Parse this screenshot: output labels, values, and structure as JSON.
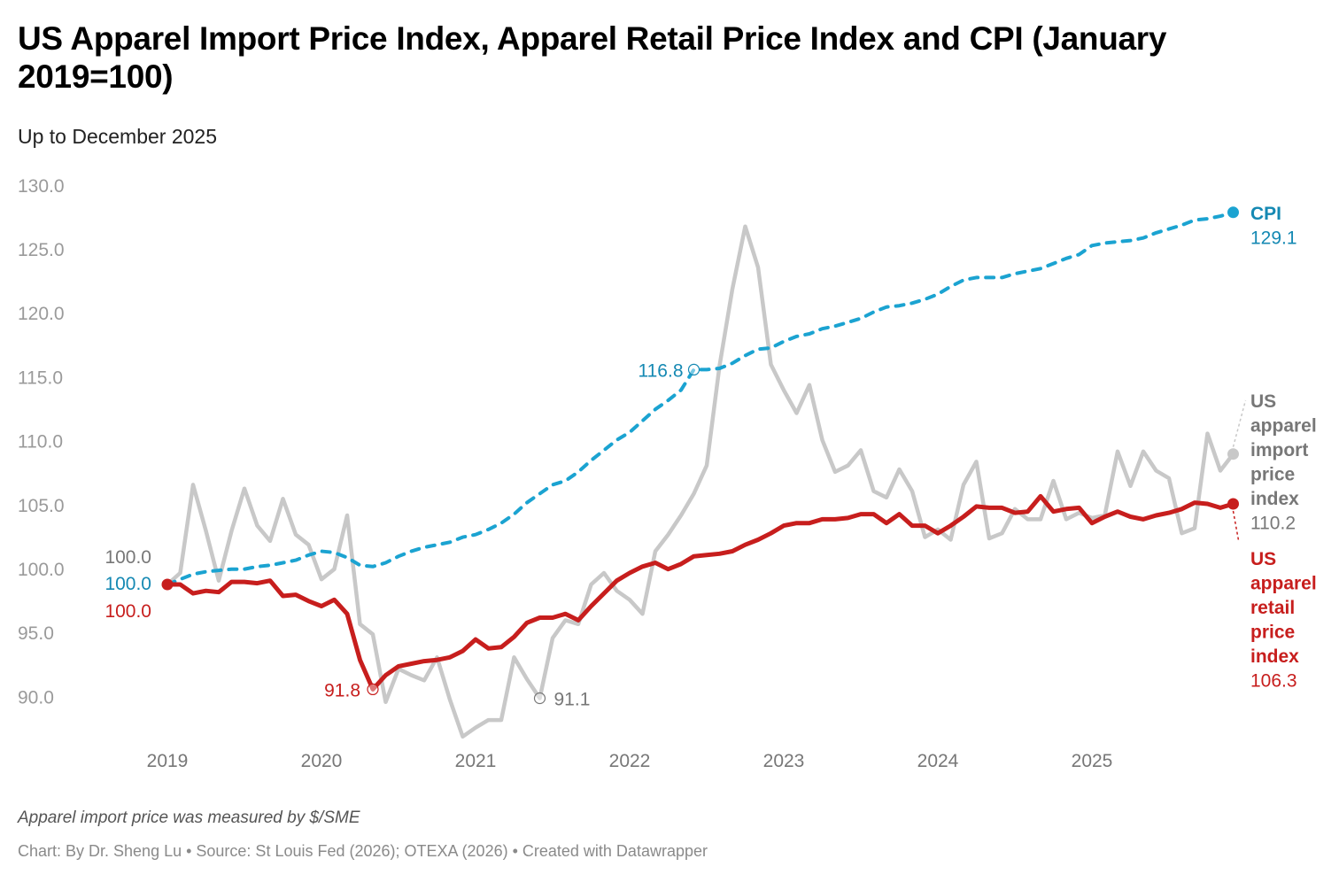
{
  "header": {
    "title": "US Apparel Import Price Index, Apparel Retail Price Index and CPI (January 2019=100)",
    "subtitle": "Up to December 2025"
  },
  "footer": {
    "notes": "Apparel import price was measured by $/SME",
    "byline": "Chart: By Dr. Sheng Lu • Source: St Louis Fed (2026); OTEXA (2026) • Created with Datawrapper"
  },
  "chart_data": {
    "type": "line",
    "title": "US Apparel Import Price Index, Apparel Retail Price Index and CPI (January 2019=100)",
    "subtitle": "Up to December 2025",
    "xlabel": "",
    "ylabel": "",
    "x_start": "2019-01",
    "x_frequency": "monthly",
    "x_ticks": [
      "2019",
      "2020",
      "2021",
      "2022",
      "2023",
      "2024",
      "2025"
    ],
    "y_ticks": [
      90,
      95,
      100,
      105,
      110,
      115,
      120,
      125,
      130
    ],
    "y_tick_labels": [
      "90.0",
      "95.0",
      "100.0",
      "105.0",
      "110.0",
      "115.0",
      "120.0",
      "125.0",
      "130.0"
    ],
    "ylim": [
      86,
      131
    ],
    "grid": false,
    "legend": "direct labels at line ends (right)",
    "series": [
      {
        "name": "CPI",
        "label_lines": [
          "CPI"
        ],
        "end_value_label": "129.1",
        "start_value_label": "100.0",
        "color": "#1ba3d1",
        "label_color": "#1589b3",
        "style": "dashed",
        "values": [
          100.0,
          100.4,
          100.8,
          101.0,
          101.1,
          101.2,
          101.2,
          101.4,
          101.5,
          101.7,
          101.9,
          102.3,
          102.6,
          102.5,
          102.1,
          101.5,
          101.4,
          101.7,
          102.2,
          102.6,
          102.9,
          103.1,
          103.3,
          103.7,
          103.9,
          104.3,
          104.8,
          105.5,
          106.4,
          107.1,
          107.8,
          108.1,
          108.8,
          109.7,
          110.5,
          111.3,
          111.9,
          112.8,
          113.7,
          114.4,
          115.2,
          116.8,
          116.8,
          116.9,
          117.3,
          117.9,
          118.4,
          118.5,
          119.0,
          119.4,
          119.6,
          120.0,
          120.2,
          120.5,
          120.8,
          121.3,
          121.7,
          121.8,
          122.0,
          122.3,
          122.7,
          123.3,
          123.8,
          124.0,
          124.0,
          124.0,
          124.3,
          124.5,
          124.7,
          125.1,
          125.5,
          125.8,
          126.5,
          126.7,
          126.8,
          126.9,
          127.1,
          127.5,
          127.8,
          128.1,
          128.5,
          128.6,
          128.8,
          129.1
        ],
        "annotations": [
          {
            "month": "2022-06",
            "label": "116.8"
          }
        ]
      },
      {
        "name": "US apparel import price index",
        "label_lines": [
          "US",
          "apparel",
          "import",
          "price",
          "index"
        ],
        "end_value_label": "110.2",
        "start_value_label": "100.0",
        "color": "#c8c8c8",
        "label_color": "#777777",
        "style": "solid",
        "values": [
          100.0,
          100.9,
          107.8,
          104.2,
          100.3,
          104.2,
          107.5,
          104.6,
          103.4,
          106.7,
          103.9,
          103.1,
          100.4,
          101.2,
          105.4,
          96.9,
          96.1,
          90.8,
          93.4,
          92.9,
          92.5,
          94.3,
          91.0,
          88.1,
          88.8,
          89.4,
          89.4,
          94.3,
          92.6,
          91.1,
          95.8,
          97.2,
          96.9,
          100.0,
          100.9,
          99.5,
          98.8,
          97.7,
          102.6,
          103.9,
          105.4,
          107.1,
          109.3,
          117.1,
          123.1,
          128.0,
          124.8,
          117.2,
          115.2,
          113.4,
          115.6,
          111.3,
          108.8,
          109.3,
          110.5,
          107.3,
          106.8,
          109.0,
          107.3,
          103.7,
          104.3,
          103.5,
          107.8,
          109.6,
          103.6,
          104.0,
          105.9,
          105.1,
          105.1,
          108.1,
          105.1,
          105.6,
          105.2,
          105.4,
          110.4,
          107.7,
          110.4,
          108.9,
          108.3,
          104.0,
          104.4,
          111.8,
          108.9,
          110.2
        ],
        "annotations": [
          {
            "month": "2021-06",
            "label": "91.1"
          }
        ]
      },
      {
        "name": "US apparel retail price index",
        "label_lines": [
          "US",
          "apparel",
          "retail",
          "price",
          "index"
        ],
        "end_value_label": "106.3",
        "start_value_label": "100.0",
        "color": "#c71e1d",
        "label_color": "#c71e1d",
        "style": "solid",
        "values": [
          100.0,
          100.0,
          99.3,
          99.5,
          99.4,
          100.2,
          100.2,
          100.1,
          100.3,
          99.1,
          99.2,
          98.7,
          98.3,
          98.8,
          97.7,
          94.1,
          91.8,
          92.9,
          93.6,
          93.8,
          94.0,
          94.1,
          94.3,
          94.8,
          95.7,
          95.0,
          95.1,
          95.9,
          97.0,
          97.4,
          97.4,
          97.7,
          97.2,
          98.3,
          99.3,
          100.3,
          100.9,
          101.4,
          101.7,
          101.2,
          101.6,
          102.2,
          102.3,
          102.4,
          102.6,
          103.1,
          103.5,
          104.0,
          104.6,
          104.8,
          104.8,
          105.1,
          105.1,
          105.2,
          105.5,
          105.5,
          104.8,
          105.5,
          104.6,
          104.6,
          104.0,
          104.6,
          105.3,
          106.1,
          106.0,
          106.0,
          105.6,
          105.7,
          106.9,
          105.7,
          105.9,
          106.0,
          104.8,
          105.3,
          105.7,
          105.3,
          105.1,
          105.4,
          105.6,
          105.9,
          106.4,
          106.3,
          106.0,
          106.3
        ],
        "annotations": [
          {
            "month": "2020-05",
            "label": "91.8"
          }
        ]
      }
    ]
  }
}
